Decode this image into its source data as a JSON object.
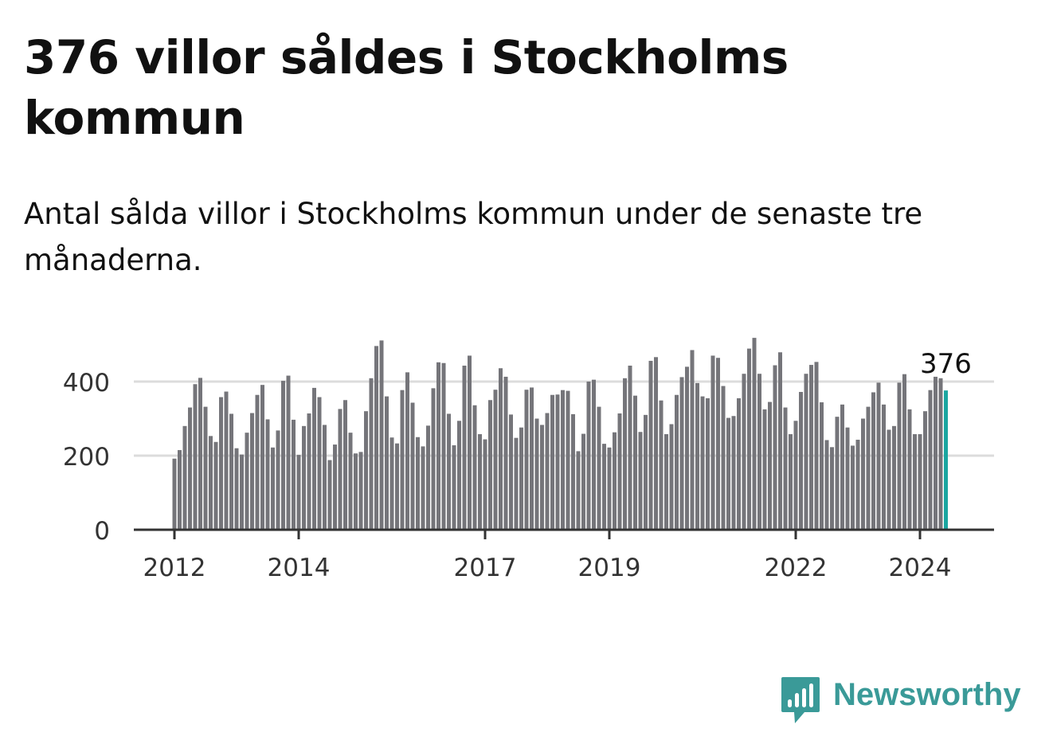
{
  "title": "376 villor såldes i Stockholms kommun",
  "subtitle": "Antal sålda villor i Stockholms kommun under de senaste tre månaderna.",
  "brand": {
    "name": "Newsworthy",
    "icon": "newsworthy-logo-icon",
    "color": "#3a9a98"
  },
  "chart_data": {
    "type": "bar",
    "xlabel": "",
    "ylabel": "",
    "ylim": [
      0,
      520
    ],
    "yticks": [
      0,
      200,
      400
    ],
    "ytick_labels": [
      "0",
      "200",
      "400"
    ],
    "xticks": [
      2012,
      2014,
      2017,
      2019,
      2022,
      2024
    ],
    "xtick_labels": [
      "2012",
      "2014",
      "2017",
      "2019",
      "2022",
      "2024"
    ],
    "grid": true,
    "bar_color": "#75757a",
    "highlight_color": "#1aa6a0",
    "annotation": {
      "label": "376",
      "value": 376
    },
    "series": [
      {
        "start_year": 2012,
        "start_month": 1,
        "end_year": 2024,
        "end_month": 7,
        "values": [
          192,
          215,
          280,
          330,
          393,
          410,
          332,
          253,
          237,
          358,
          373,
          313,
          220,
          203,
          262,
          315,
          364,
          391,
          298,
          222,
          268,
          402,
          416,
          297,
          202,
          280,
          314,
          383,
          358,
          283,
          188,
          230,
          326,
          350,
          262,
          206,
          210,
          320,
          409,
          496,
          511,
          360,
          249,
          233,
          377,
          425,
          343,
          250,
          225,
          281,
          382,
          452,
          450,
          313,
          228,
          294,
          443,
          470,
          336,
          258,
          244,
          350,
          378,
          436,
          413,
          311,
          248,
          276,
          378,
          384,
          300,
          283,
          315,
          364,
          365,
          377,
          375,
          312,
          212,
          259,
          400,
          405,
          332,
          232,
          222,
          263,
          314,
          409,
          443,
          362,
          264,
          310,
          456,
          466,
          349,
          258,
          285,
          364,
          412,
          440,
          485,
          396,
          360,
          355,
          470,
          464,
          388,
          302,
          307,
          355,
          421,
          489,
          518,
          421,
          325,
          345,
          444,
          479,
          330,
          258,
          294,
          372,
          421,
          445,
          453,
          344,
          242,
          223,
          305,
          338,
          276,
          227,
          243,
          300,
          332,
          371,
          397,
          338,
          270,
          280,
          397,
          420,
          325,
          258,
          258,
          320,
          377,
          413,
          409,
          376
        ]
      }
    ]
  }
}
